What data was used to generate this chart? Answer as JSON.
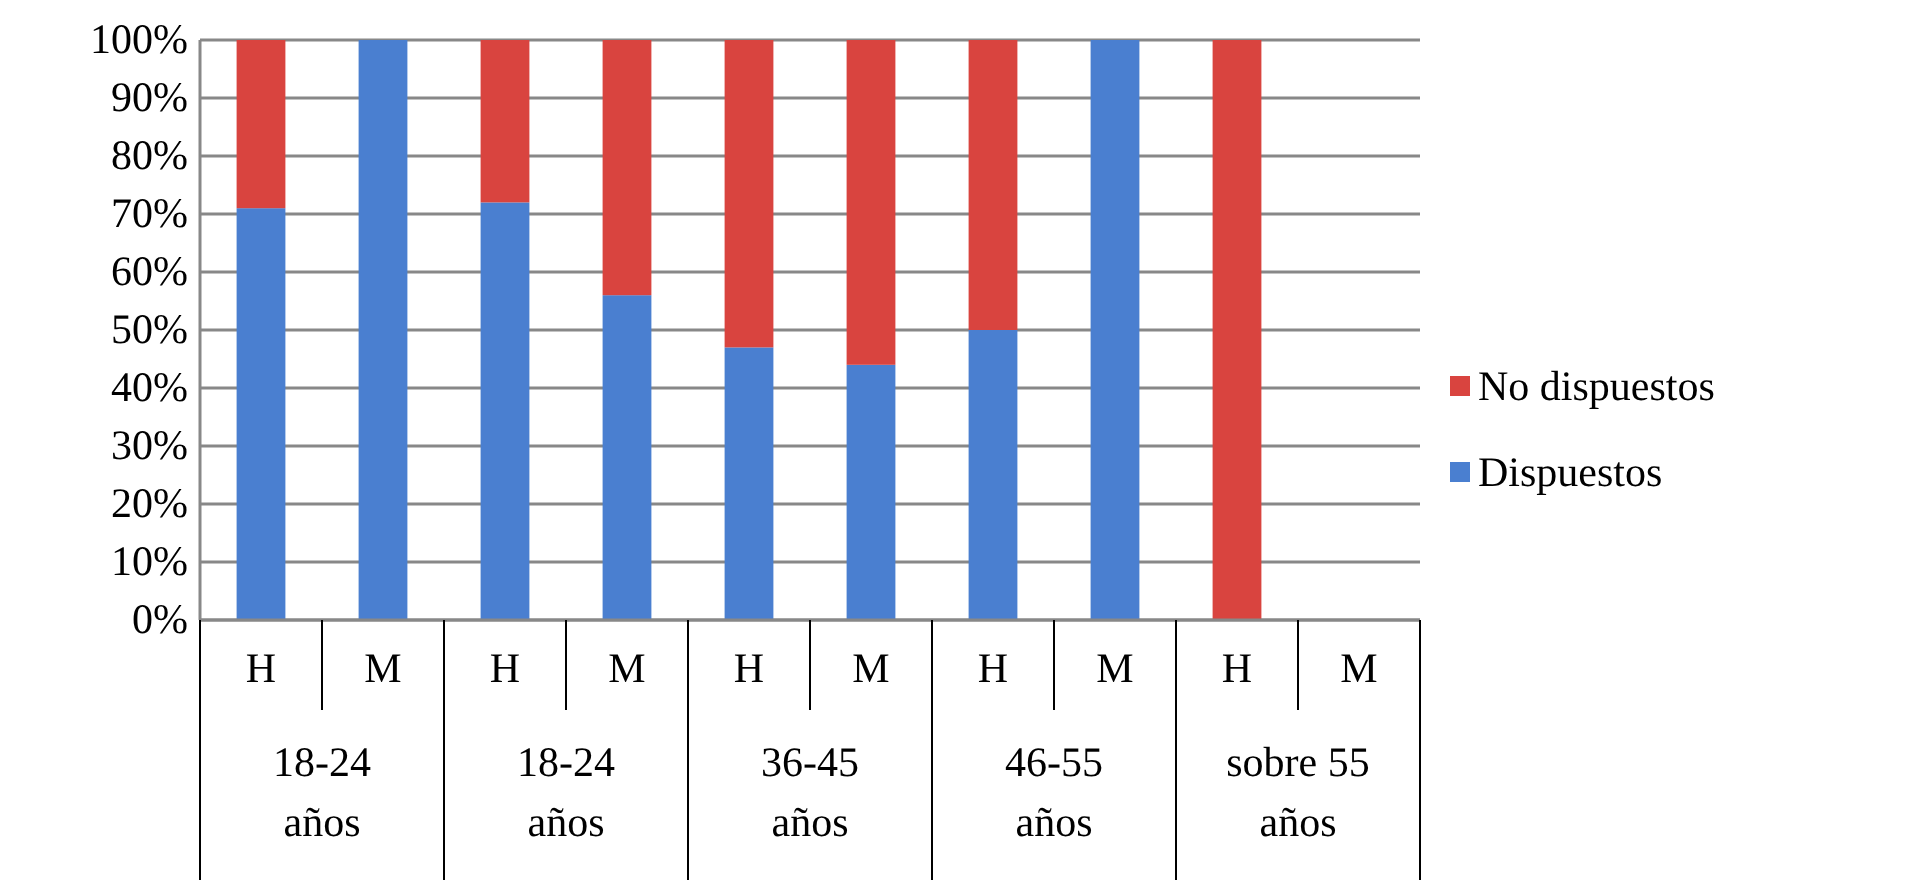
{
  "chart_data": {
    "type": "bar",
    "stacked": true,
    "categories": [
      "H",
      "M",
      "H",
      "M",
      "H",
      "M",
      "H",
      "M",
      "H",
      "M"
    ],
    "annotations": [
      "18-24 años",
      "18-24 años",
      "36-45 años",
      "46-55 años",
      "sobre 55 años"
    ],
    "series": [
      {
        "name": "Dispuestos",
        "color": "#4a7fd0",
        "values": [
          71,
          100,
          72,
          56,
          47,
          44,
          50,
          100,
          0,
          0
        ]
      },
      {
        "name": "No dispuestos",
        "color": "#d9443f",
        "values": [
          29,
          0,
          28,
          44,
          53,
          56,
          50,
          0,
          100,
          0
        ]
      }
    ],
    "ylim": [
      0,
      100
    ],
    "yticks": [
      {
        "value": 0,
        "label": "0%"
      },
      {
        "value": 10,
        "label": "10%"
      },
      {
        "value": 20,
        "label": "20%"
      },
      {
        "value": 30,
        "label": "30%"
      },
      {
        "value": 40,
        "label": "40%"
      },
      {
        "value": 50,
        "label": "50%"
      },
      {
        "value": 60,
        "label": "60%"
      },
      {
        "value": 70,
        "label": "70%"
      },
      {
        "value": 80,
        "label": "80%"
      },
      {
        "value": 90,
        "label": "90%"
      },
      {
        "value": 100,
        "label": "100%"
      }
    ],
    "grid": "y",
    "legend": "right"
  }
}
